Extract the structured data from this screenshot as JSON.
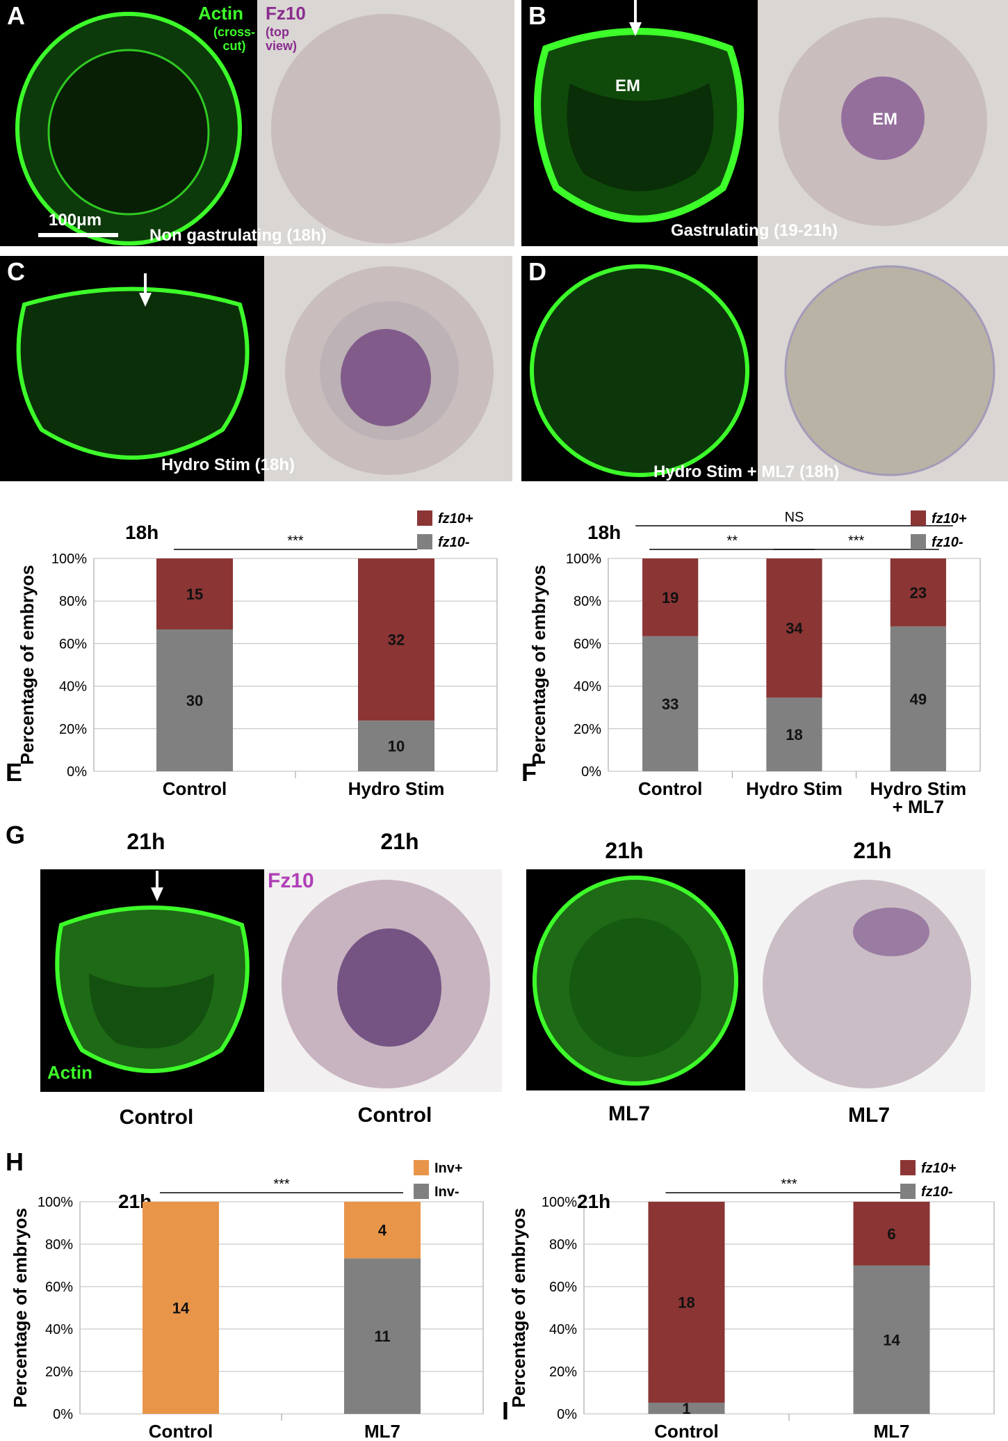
{
  "panels": {
    "A": {
      "letter": "A",
      "stain1": "Actin",
      "stain1_note": "(cross-cut)",
      "stain2": "Fz10",
      "stain2_note": "(top view)",
      "scalebar": "100μm",
      "caption": "Non gastrulating (18h)"
    },
    "B": {
      "letter": "B",
      "em_left": "EM",
      "em_right": "EM",
      "caption": "Gastrulating (19-21h)"
    },
    "C": {
      "letter": "C",
      "caption": "Hydro Stim (18h)"
    },
    "D": {
      "letter": "D",
      "caption": "Hydro Stim + ML7 (18h)"
    },
    "G": {
      "letter": "G",
      "headers": [
        "21h",
        "21h",
        "21h",
        "21h"
      ],
      "fz10_label": "Fz10",
      "actin_label": "Actin",
      "captions": [
        "Control",
        "Control",
        "ML7",
        "ML7"
      ]
    }
  },
  "colors": {
    "fz10_pos": "#8b3535",
    "neg": "#808080",
    "inv_pos": "#e8954a",
    "actin_green": "#3dff2a",
    "fz10_purple": "#b03fb8"
  },
  "chart_data": [
    {
      "panel": "E",
      "type": "bar",
      "stacked": true,
      "percent": true,
      "title": "18h",
      "ylabel": "Percentage of embryos",
      "ylim": [
        0,
        100
      ],
      "yticks": [
        "0%",
        "20%",
        "40%",
        "60%",
        "80%",
        "100%"
      ],
      "categories": [
        "Control",
        "Hydro Stim"
      ],
      "series": [
        {
          "name": "fz10-",
          "values": [
            30,
            10
          ]
        },
        {
          "name": "fz10+",
          "values": [
            15,
            32
          ]
        }
      ],
      "legend": "top-right",
      "sig": [
        {
          "from": 0,
          "to": 1,
          "label": "***"
        }
      ]
    },
    {
      "panel": "F",
      "type": "bar",
      "stacked": true,
      "percent": true,
      "title": "18h",
      "ylabel": "Percentage of embryos",
      "ylim": [
        0,
        100
      ],
      "yticks": [
        "0%",
        "20%",
        "40%",
        "60%",
        "80%",
        "100%"
      ],
      "categories": [
        "Control",
        "Hydro Stim",
        "Hydro Stim\n+ ML7"
      ],
      "series": [
        {
          "name": "fz10-",
          "values": [
            33,
            18,
            49
          ]
        },
        {
          "name": "fz10+",
          "values": [
            19,
            34,
            23
          ]
        }
      ],
      "legend": "top-right",
      "sig": [
        {
          "from": 0,
          "to": 2,
          "label": "NS"
        },
        {
          "from": 0,
          "to": 1,
          "label": "**"
        },
        {
          "from": 1,
          "to": 2,
          "label": "***"
        }
      ]
    },
    {
      "panel": "H",
      "type": "bar",
      "stacked": true,
      "percent": true,
      "title": "21h",
      "ylabel": "Percentage of embryos",
      "ylim": [
        0,
        100
      ],
      "yticks": [
        "0%",
        "20%",
        "40%",
        "60%",
        "80%",
        "100%"
      ],
      "categories": [
        "Control",
        "ML7"
      ],
      "series": [
        {
          "name": "Inv-",
          "values": [
            0,
            11
          ]
        },
        {
          "name": "Inv+",
          "values": [
            14,
            4
          ]
        }
      ],
      "legend": "top-right",
      "sig": [
        {
          "from": 0,
          "to": 1,
          "label": "***"
        }
      ]
    },
    {
      "panel": "I",
      "type": "bar",
      "stacked": true,
      "percent": true,
      "title": "21h",
      "ylabel": "Percentage of embryos",
      "ylim": [
        0,
        100
      ],
      "yticks": [
        "0%",
        "20%",
        "40%",
        "60%",
        "80%",
        "100%"
      ],
      "categories": [
        "Control",
        "ML7"
      ],
      "series": [
        {
          "name": "fz10-",
          "values": [
            1,
            14
          ]
        },
        {
          "name": "fz10+",
          "values": [
            18,
            6
          ]
        }
      ],
      "legend": "top-right",
      "sig": [
        {
          "from": 0,
          "to": 1,
          "label": "***"
        }
      ]
    }
  ]
}
